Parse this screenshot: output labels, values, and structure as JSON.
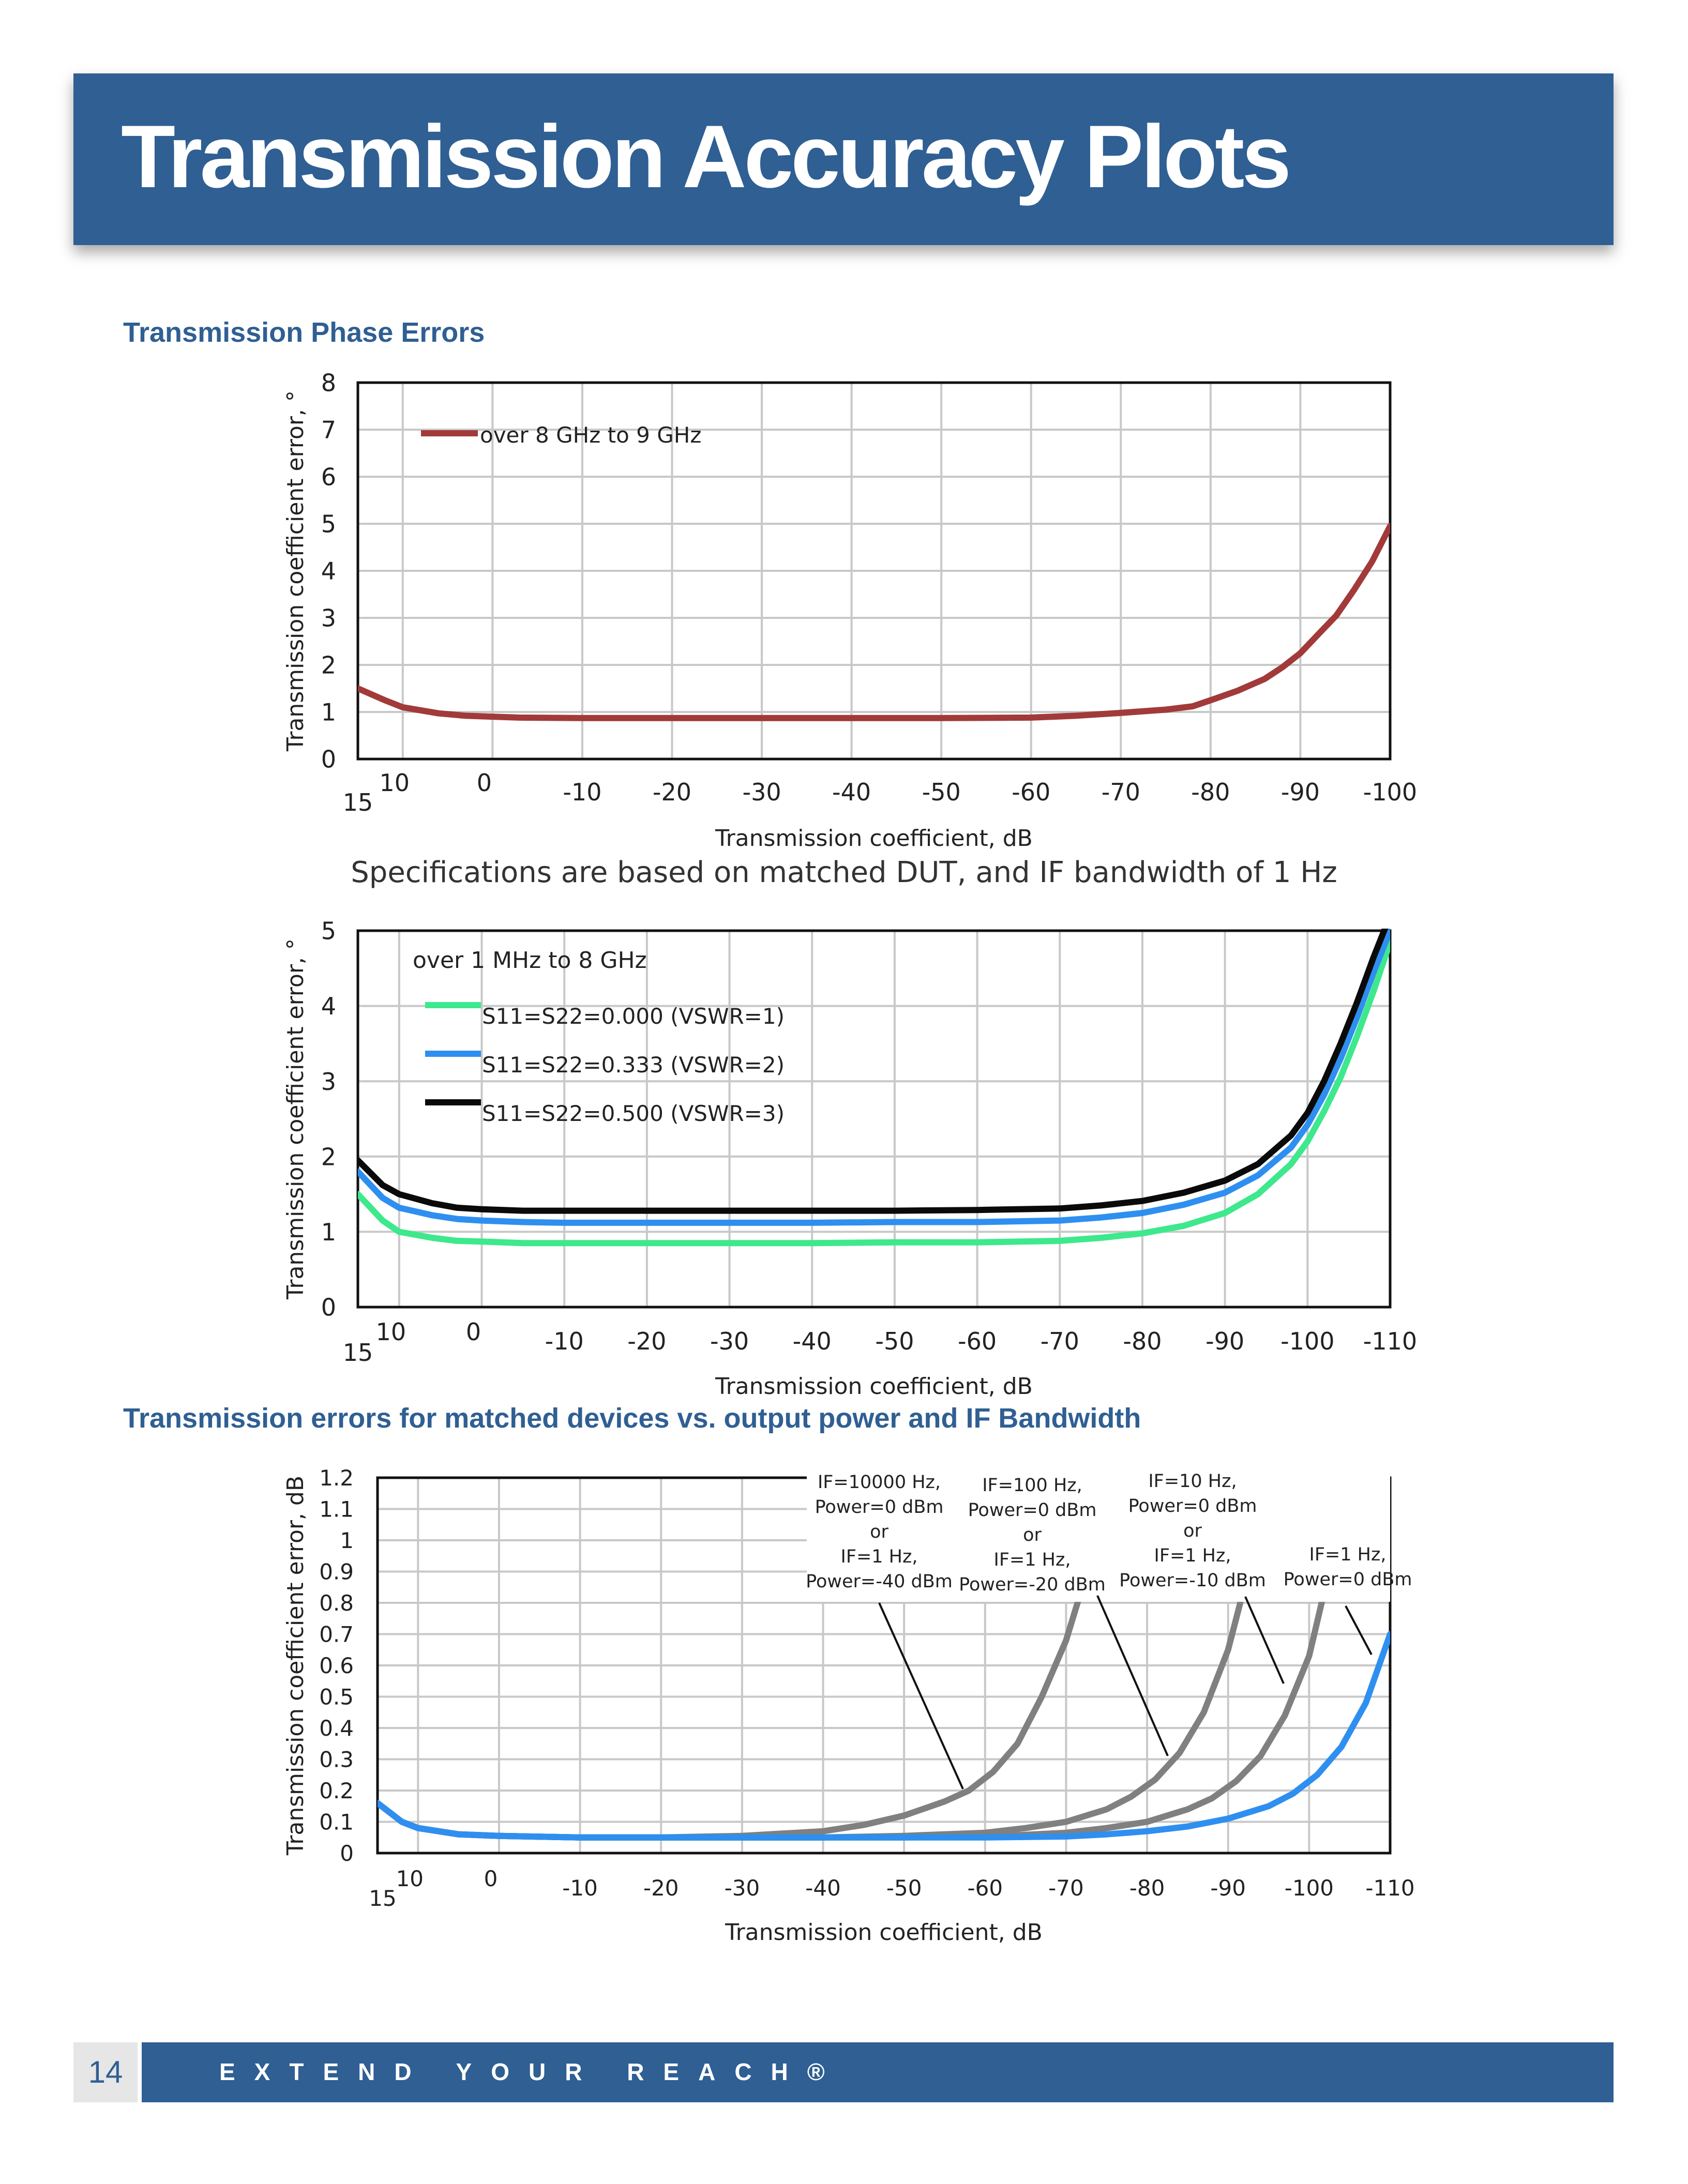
{
  "page": {
    "title": "Transmission Accuracy Plots",
    "section1": "Transmission Phase Errors",
    "note": "Specifications are based on matched DUT, and IF bandwidth of 1 Hz",
    "section2": "Transmission errors for matched devices vs. output power and IF Bandwidth",
    "page_number": "14",
    "footer_text": "EXTEND YOUR REACH®"
  },
  "chart_data": [
    {
      "type": "line",
      "ylabel": "Transmission coefficient error, °",
      "xlabel": "Transmission coefficient, dB",
      "xlim": [
        15,
        -100
      ],
      "ylim": [
        0,
        8
      ],
      "x_ticks": [
        "15",
        "10",
        "0",
        "-10",
        "-20",
        "-30",
        "-40",
        "-50",
        "-60",
        "-70",
        "-80",
        "-90",
        "-100"
      ],
      "y_ticks": [
        "0",
        "1",
        "2",
        "3",
        "4",
        "5",
        "6",
        "7",
        "8"
      ],
      "legend_title": "",
      "grid": true,
      "legend_position": "top-left",
      "series": [
        {
          "name": "over 8 GHz to 9 GHz",
          "color": "#a23a3a",
          "x": [
            15,
            12,
            10,
            6,
            3,
            0,
            -3,
            -10,
            -20,
            -30,
            -40,
            -50,
            -60,
            -65,
            -70,
            -75,
            -78,
            -80,
            -83,
            -86,
            -88,
            -90,
            -92,
            -94,
            -96,
            -98,
            -100
          ],
          "y": [
            1.5,
            1.25,
            1.1,
            0.97,
            0.92,
            0.9,
            0.88,
            0.87,
            0.87,
            0.87,
            0.87,
            0.87,
            0.88,
            0.92,
            0.98,
            1.05,
            1.12,
            1.25,
            1.45,
            1.7,
            1.95,
            2.25,
            2.65,
            3.05,
            3.6,
            4.2,
            4.95
          ]
        }
      ]
    },
    {
      "type": "line",
      "ylabel": "Transmission coefficient error, °",
      "xlabel": "Transmission coefficient, dB",
      "xlim": [
        15,
        -110
      ],
      "ylim": [
        0,
        5
      ],
      "x_ticks": [
        "15",
        "10",
        "0",
        "-10",
        "-20",
        "-30",
        "-40",
        "-50",
        "-60",
        "-70",
        "-80",
        "-90",
        "-100",
        "-110"
      ],
      "y_ticks": [
        "0",
        "1",
        "2",
        "3",
        "4",
        "5"
      ],
      "legend_title": "over 1 MHz to 8 GHz",
      "grid": true,
      "legend_position": "top-left",
      "series": [
        {
          "name": "S11=S22=0.000 (VSWR=1)",
          "color": "#3ee88c",
          "x": [
            15,
            12,
            10,
            6,
            3,
            0,
            -5,
            -10,
            -20,
            -30,
            -40,
            -50,
            -60,
            -70,
            -75,
            -80,
            -85,
            -90,
            -94,
            -98,
            -100,
            -102,
            -104,
            -106,
            -108,
            -110
          ],
          "y": [
            1.5,
            1.15,
            1.0,
            0.92,
            0.88,
            0.87,
            0.85,
            0.85,
            0.85,
            0.85,
            0.85,
            0.86,
            0.86,
            0.88,
            0.92,
            0.98,
            1.08,
            1.25,
            1.5,
            1.9,
            2.2,
            2.6,
            3.05,
            3.6,
            4.2,
            4.85
          ]
        },
        {
          "name": "S11=S22=0.333 (VSWR=2)",
          "color": "#2e8ff0",
          "x": [
            15,
            12,
            10,
            6,
            3,
            0,
            -5,
            -10,
            -20,
            -30,
            -40,
            -50,
            -60,
            -70,
            -75,
            -80,
            -85,
            -90,
            -94,
            -98,
            -100,
            -102,
            -104,
            -106,
            -108,
            -110
          ],
          "y": [
            1.8,
            1.45,
            1.32,
            1.22,
            1.17,
            1.15,
            1.13,
            1.12,
            1.12,
            1.12,
            1.12,
            1.13,
            1.13,
            1.15,
            1.19,
            1.25,
            1.36,
            1.52,
            1.75,
            2.12,
            2.42,
            2.82,
            3.3,
            3.85,
            4.45,
            5.0
          ]
        },
        {
          "name": "S11=S22=0.500 (VSWR=3)",
          "color": "#0a0a0a",
          "x": [
            15,
            12,
            10,
            6,
            3,
            0,
            -5,
            -10,
            -20,
            -30,
            -40,
            -50,
            -60,
            -70,
            -75,
            -80,
            -85,
            -90,
            -94,
            -98,
            -100,
            -102,
            -104,
            -106,
            -108,
            -110
          ],
          "y": [
            1.95,
            1.62,
            1.5,
            1.38,
            1.32,
            1.3,
            1.28,
            1.28,
            1.28,
            1.28,
            1.28,
            1.28,
            1.29,
            1.31,
            1.35,
            1.41,
            1.52,
            1.68,
            1.9,
            2.28,
            2.58,
            3.0,
            3.5,
            4.05,
            4.65,
            5.2
          ]
        }
      ]
    },
    {
      "type": "line",
      "ylabel": "Transmission coefficient error, dB",
      "xlabel": "Transmission coefficient, dB",
      "xlim": [
        15,
        -110
      ],
      "ylim": [
        0,
        1.2
      ],
      "x_ticks": [
        "15",
        "10",
        "0",
        "-10",
        "-20",
        "-30",
        "-40",
        "-50",
        "-60",
        "-70",
        "-80",
        "-90",
        "-100",
        "-110"
      ],
      "y_ticks": [
        "0",
        "0.1",
        "0.2",
        "0.3",
        "0.4",
        "0.5",
        "0.6",
        "0.7",
        "0.8",
        "0.9",
        "1",
        "1.1",
        "1.2"
      ],
      "legend_title": "",
      "grid": true,
      "legend_position": "none",
      "series": [
        {
          "color": "#808080",
          "x": [
            15,
            12,
            10,
            5,
            0,
            -10,
            -20,
            -30,
            -40,
            -45,
            -50,
            -55,
            -58,
            -61,
            -64,
            -67,
            -70,
            -72
          ],
          "y": [
            0.16,
            0.1,
            0.08,
            0.06,
            0.055,
            0.05,
            0.05,
            0.055,
            0.07,
            0.09,
            0.12,
            0.165,
            0.2,
            0.26,
            0.35,
            0.5,
            0.68,
            0.85
          ]
        },
        {
          "color": "#808080",
          "x": [
            15,
            12,
            10,
            5,
            0,
            -10,
            -20,
            -30,
            -40,
            -50,
            -60,
            -65,
            -70,
            -75,
            -78,
            -81,
            -84,
            -87,
            -90,
            -92
          ],
          "y": [
            0.16,
            0.1,
            0.08,
            0.06,
            0.055,
            0.05,
            0.05,
            0.05,
            0.05,
            0.055,
            0.065,
            0.08,
            0.1,
            0.14,
            0.18,
            0.235,
            0.32,
            0.45,
            0.65,
            0.85
          ]
        },
        {
          "color": "#808080",
          "x": [
            15,
            12,
            10,
            5,
            0,
            -10,
            -20,
            -30,
            -40,
            -50,
            -60,
            -70,
            -75,
            -80,
            -85,
            -88,
            -91,
            -94,
            -97,
            -100,
            -102
          ],
          "y": [
            0.16,
            0.1,
            0.08,
            0.06,
            0.055,
            0.05,
            0.05,
            0.05,
            0.05,
            0.05,
            0.052,
            0.065,
            0.08,
            0.1,
            0.14,
            0.175,
            0.23,
            0.31,
            0.44,
            0.63,
            0.85
          ]
        },
        {
          "color": "#2e8ff0",
          "x": [
            15,
            12,
            10,
            5,
            0,
            -10,
            -20,
            -30,
            -40,
            -50,
            -60,
            -70,
            -75,
            -80,
            -85,
            -90,
            -95,
            -98,
            -101,
            -104,
            -107,
            -110
          ],
          "y": [
            0.16,
            0.1,
            0.08,
            0.06,
            0.055,
            0.05,
            0.05,
            0.05,
            0.05,
            0.05,
            0.05,
            0.053,
            0.06,
            0.07,
            0.085,
            0.11,
            0.15,
            0.19,
            0.25,
            0.34,
            0.48,
            0.7
          ]
        }
      ],
      "annotations": [
        "IF=10000 Hz, Power=0 dBm or IF=1 Hz, Power=-40 dBm",
        "IF=100 Hz, Power=0 dBm or IF=1 Hz, Power=-20 dBm",
        "IF=10 Hz, Power=0 dBm or IF=1 Hz, Power=-10 dBm",
        "IF=1 Hz, Power=0 dBm"
      ]
    }
  ],
  "annotations_lines": [
    [
      "IF=10000 Hz,",
      "Power=0 dBm",
      "or",
      "IF=1 Hz,",
      "Power=-40 dBm"
    ],
    [
      "IF=100 Hz,",
      "Power=0 dBm",
      "or",
      "IF=1 Hz,",
      "Power=-20 dBm"
    ],
    [
      "IF=10 Hz,",
      "Power=0 dBm",
      "or",
      "IF=1 Hz,",
      "Power=-10 dBm"
    ],
    [
      "IF=1 Hz,",
      "Power=0 dBm"
    ]
  ],
  "colors": {
    "brand": "#2f5f93",
    "grid": "#c8c8c8"
  }
}
